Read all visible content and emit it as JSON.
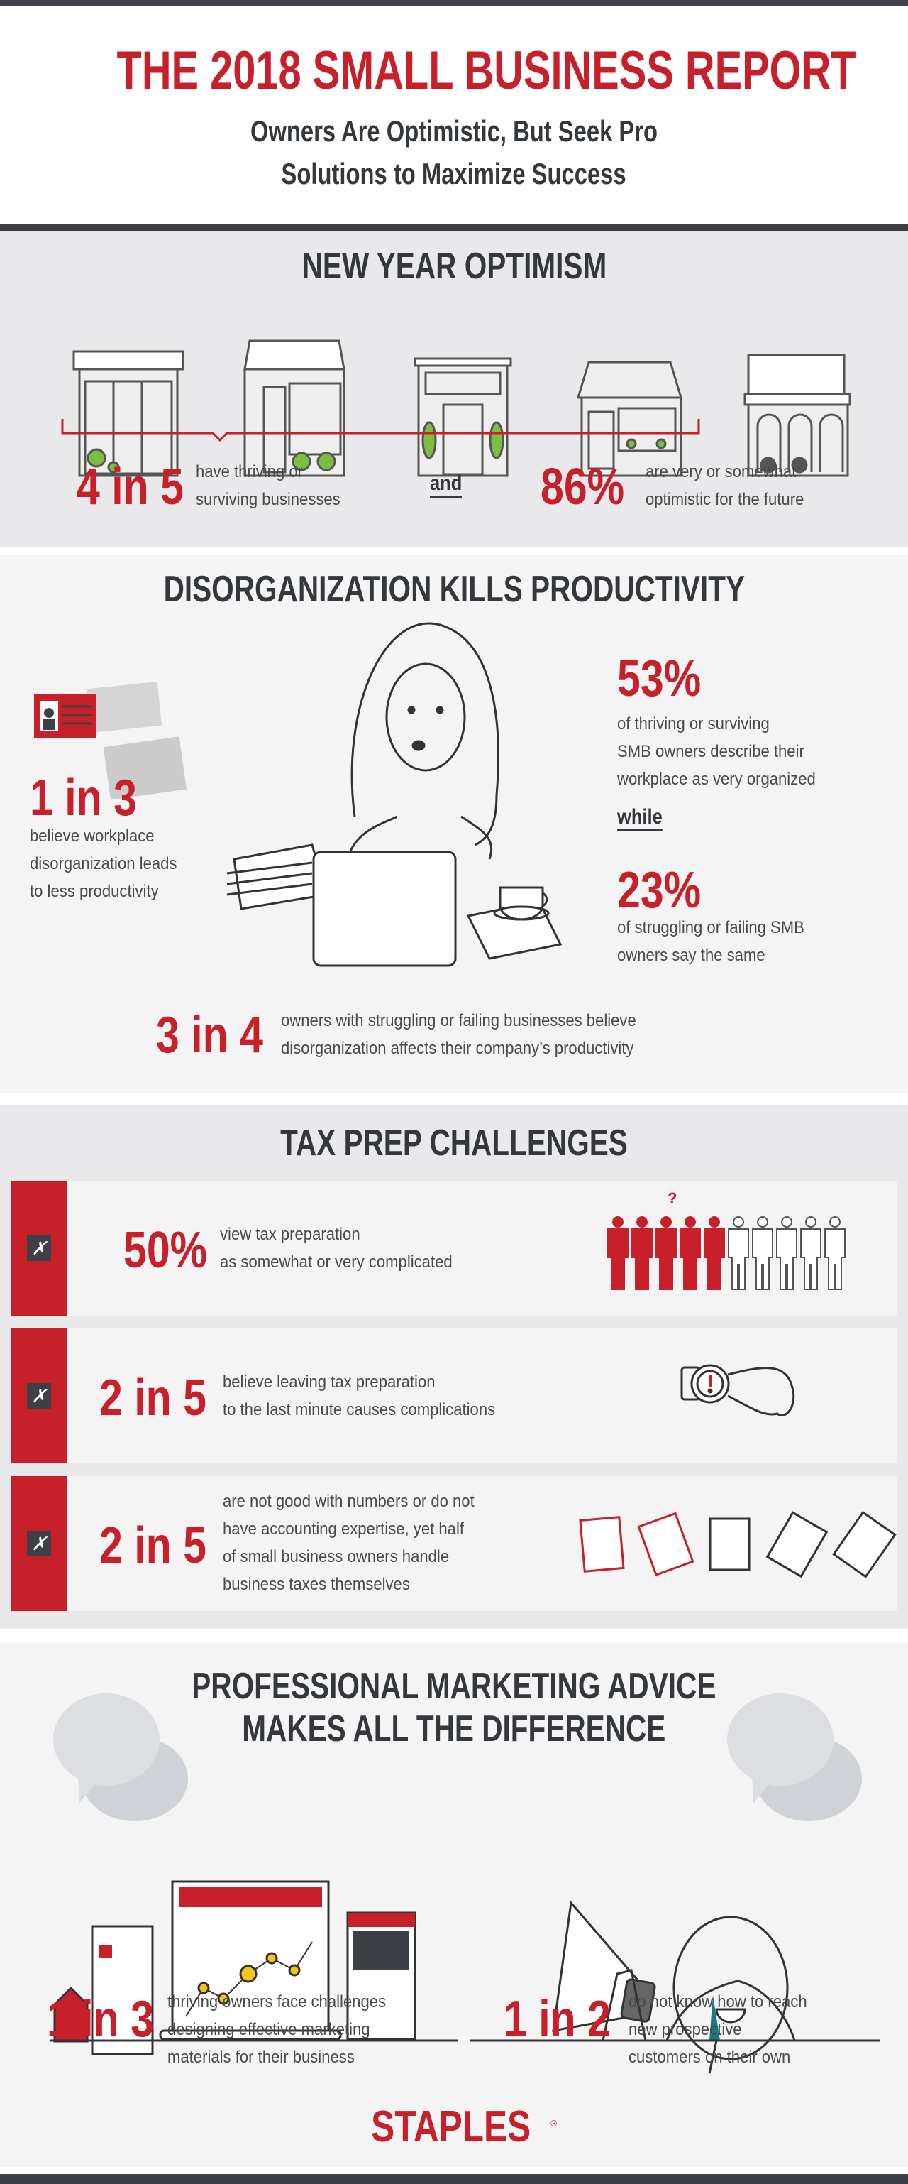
{
  "header": {
    "title": "THE 2018 SMALL BUSINESS REPORT",
    "subtitle_line1": "Owners Are Optimistic, But Seek Pro",
    "subtitle_line2": "Solutions to Maximize Success"
  },
  "colors": {
    "accent": "#c8202b",
    "dark": "#3d4045",
    "section_gray": "#e9e9eb",
    "section_light": "#f4f4f5",
    "plant_green": "#7cbd42"
  },
  "optimism": {
    "heading": "NEW YEAR OPTIMISM",
    "stat1": {
      "value": "4 in 5",
      "line1": "have thriving or",
      "line2": "surviving businesses"
    },
    "connector": "and",
    "stat2": {
      "value": "86%",
      "line1": "are very or somewhat",
      "line2": "optimistic for the future"
    }
  },
  "disorganization": {
    "heading": "DISORGANIZATION KILLS PRODUCTIVITY",
    "stat_left": {
      "value": "1 in 3",
      "lines": [
        "believe workplace",
        "disorganization leads",
        "to less productivity"
      ]
    },
    "stat_right1": {
      "value": "53%",
      "lines": [
        "of thriving or surviving",
        "SMB owners describe their",
        "workplace as very organized"
      ]
    },
    "connector": "while",
    "stat_right2": {
      "value": "23%",
      "lines": [
        "of struggling or failing SMB",
        "owners say the same"
      ]
    },
    "stat_bottom": {
      "value": "3 in 4",
      "lines": [
        "owners with struggling or failing businesses believe",
        "disorganization affects their company’s productivity"
      ]
    }
  },
  "tax": {
    "heading": "TAX PREP CHALLENGES",
    "question_mark": "?",
    "people_highlighted_fraction": 0.5,
    "cards": [
      {
        "value": "50%",
        "lines": [
          "view tax preparation",
          "as somewhat or very complicated"
        ]
      },
      {
        "value": "2 in 5",
        "lines": [
          "believe leaving tax preparation",
          "to the last minute causes complications"
        ]
      },
      {
        "value": "2 in 5",
        "lines": [
          "are not good with numbers or do not",
          "have accounting expertise, yet half",
          "of small business owners handle",
          "business taxes themselves"
        ]
      }
    ]
  },
  "marketing": {
    "heading_line1": "PROFESSIONAL MARKETING ADVICE",
    "heading_line2": "MAKES ALL THE DIFFERENCE",
    "stat_left": {
      "value": "1 in 3",
      "lines": [
        "thriving owners face challenges",
        "designing effective marketing",
        "materials for their business"
      ]
    },
    "stat_right": {
      "value": "1 in 2",
      "lines": [
        "do not know how to reach",
        "new prospective",
        "customers on their own"
      ]
    }
  },
  "footer": {
    "logo": "STAPLES"
  }
}
